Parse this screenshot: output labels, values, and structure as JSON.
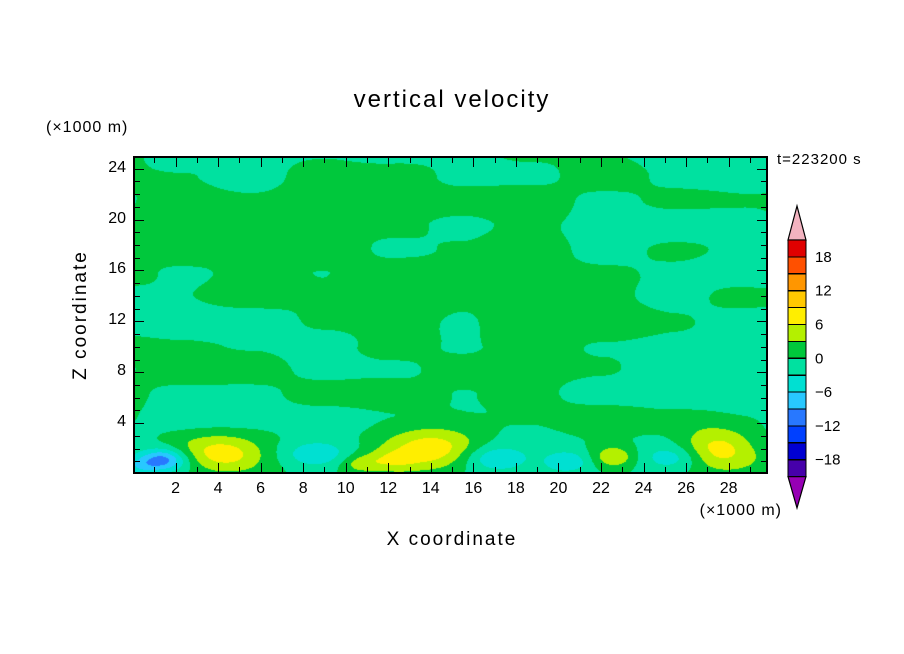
{
  "header": {
    "title": "vertical velocity",
    "timestamp": "t=223200 s"
  },
  "axes": {
    "x_label": "X coordinate",
    "x_unit": "(×1000 m)",
    "y_label": "Z coordinate",
    "y_unit": "(×1000 m)",
    "x_ticks": [
      2,
      4,
      6,
      8,
      10,
      12,
      14,
      16,
      18,
      20,
      22,
      24,
      26,
      28
    ],
    "y_ticks": [
      24,
      20,
      16,
      12,
      8,
      4
    ]
  },
  "colorbar": {
    "labels": [
      18,
      12,
      6,
      0,
      -6,
      -12,
      -18
    ],
    "over_color": "#f2b3c0",
    "under_color": "#9600b4",
    "bands": [
      {
        "min": 18,
        "max": 21,
        "color": "#e00000"
      },
      {
        "min": 15,
        "max": 18,
        "color": "#ff5000"
      },
      {
        "min": 12,
        "max": 15,
        "color": "#ff9600"
      },
      {
        "min": 9,
        "max": 12,
        "color": "#ffc800"
      },
      {
        "min": 6,
        "max": 9,
        "color": "#ffee00"
      },
      {
        "min": 3,
        "max": 6,
        "color": "#b4f000"
      },
      {
        "min": 0,
        "max": 3,
        "color": "#00c83c"
      },
      {
        "min": -3,
        "max": 0,
        "color": "#00e1a0"
      },
      {
        "min": -6,
        "max": -3,
        "color": "#00e0d2"
      },
      {
        "min": -9,
        "max": -6,
        "color": "#28c8ff"
      },
      {
        "min": -12,
        "max": -9,
        "color": "#2878ff"
      },
      {
        "min": -15,
        "max": -12,
        "color": "#0040ff"
      },
      {
        "min": -18,
        "max": -15,
        "color": "#0000d2"
      },
      {
        "min": -21,
        "max": -18,
        "color": "#4600aa"
      }
    ]
  },
  "chart_data": {
    "type": "heatmap",
    "subtype": "filled-contour",
    "title": "vertical velocity",
    "xlabel": "X coordinate (×1000 m)",
    "ylabel": "Z coordinate (×1000 m)",
    "timestamp": "t=223200 s",
    "xlim": [
      0,
      29.85
    ],
    "ylim": [
      0,
      25
    ],
    "x_ticks": [
      2,
      4,
      6,
      8,
      10,
      12,
      14,
      16,
      18,
      20,
      22,
      24,
      26,
      28
    ],
    "y_ticks": [
      4,
      8,
      12,
      16,
      20,
      24
    ],
    "contour_interval": 3,
    "levels": [
      -21,
      -18,
      -15,
      -12,
      -9,
      -6,
      -3,
      0,
      3,
      6,
      9,
      12,
      15,
      18,
      21
    ],
    "colorbar_labels": [
      18,
      12,
      6,
      0,
      -6,
      -12,
      -18
    ],
    "legend_position": "right",
    "grid": false,
    "field_description": "Vertical velocity cross-section; interior mostly weak alternating cells between -3 and +3 (two green shades in horizontally elongated streaks); strong updraft maxima (yellow, 6 to 9) near the surface around x=4, x=12-14, x=22.5 and x=27.5; downdraft minima (cyan to blue, -4 to -11) near the surface around x=1.5, x=8.5, x=17, x=20.5 and x=25.5.",
    "background_texture": {
      "amplitude": 2.95,
      "weight1": 0.7,
      "weight2": 0.3,
      "x_scale1": 3.3,
      "z_scale1": 1.9,
      "x_scale2": 7.5,
      "z_scale2": 3.8,
      "seed_offsets": [
        11.3,
        4.7,
        3.9,
        9.1
      ],
      "bottom_damp_base": 0.55,
      "bottom_damp_ramp_z": 4
    },
    "features": [
      {
        "x": 4.2,
        "z": 1.6,
        "amp": 7.2,
        "rx": 1.9,
        "rz": 1.4
      },
      {
        "x": 14.0,
        "z": 1.9,
        "amp": 8.6,
        "rx": 2.3,
        "rz": 1.7
      },
      {
        "x": 12.0,
        "z": 1.0,
        "amp": 4.2,
        "rx": 1.3,
        "rz": 0.9
      },
      {
        "x": 10.6,
        "z": 0.8,
        "amp": 3.6,
        "rx": 0.9,
        "rz": 0.7
      },
      {
        "x": 22.6,
        "z": 1.3,
        "amp": 6.3,
        "rx": 1.0,
        "rz": 0.9
      },
      {
        "x": 27.5,
        "z": 2.1,
        "amp": 8.2,
        "rx": 1.9,
        "rz": 1.6
      },
      {
        "x": 1.4,
        "z": 1.1,
        "amp": -10.5,
        "rx": 1.1,
        "rz": 0.9
      },
      {
        "x": 0.3,
        "z": 0.6,
        "amp": -4.0,
        "rx": 0.8,
        "rz": 0.7
      },
      {
        "x": 8.6,
        "z": 1.4,
        "amp": -5.6,
        "rx": 1.7,
        "rz": 1.1
      },
      {
        "x": 16.9,
        "z": 1.3,
        "amp": -5.2,
        "rx": 1.5,
        "rz": 1.0
      },
      {
        "x": 20.4,
        "z": 1.0,
        "amp": -4.6,
        "rx": 1.0,
        "rz": 0.8
      },
      {
        "x": 25.4,
        "z": 1.3,
        "amp": -5.2,
        "rx": 1.4,
        "rz": 1.0
      }
    ],
    "value_clamp": [
      -11.8,
      8.8
    ]
  }
}
